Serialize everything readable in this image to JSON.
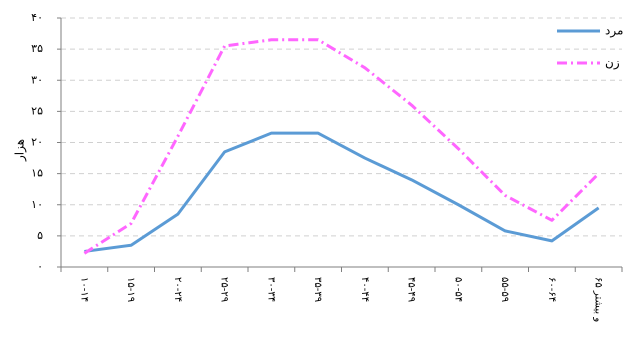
{
  "chart_data": {
    "type": "line",
    "title": "",
    "xlabel": "",
    "ylabel": "هزار",
    "ylim": [
      0,
      40
    ],
    "yticks": [
      0,
      5,
      10,
      15,
      20,
      25,
      30,
      35,
      40
    ],
    "ytick_labels": [
      "۰",
      "۵",
      "۱۰",
      "۱۵",
      "۲۰",
      "۲۵",
      "۳۰",
      "۳۵",
      "۴۰"
    ],
    "grid": "horizontal dashed",
    "legend_position": "top-right",
    "categories": [
      "۱۰-۱۴",
      "۱۵-۱۹",
      "۲۰-۲۴",
      "۲۵-۲۹",
      "۳۰-۳۴",
      "۳۵-۳۹",
      "۴۰-۴۴",
      "۴۵-۴۹",
      "۵۰-۵۴",
      "۵۵-۵۹",
      "۶۰-۶۴",
      "۶۵ و بیشتر"
    ],
    "series": [
      {
        "name": "مرد",
        "color": "#5b9bd5",
        "style": "solid",
        "values": [
          2.5,
          3.5,
          8.5,
          18.5,
          21.5,
          21.5,
          17.5,
          14,
          10,
          5.8,
          4.2,
          9.5
        ]
      },
      {
        "name": "زن",
        "color": "#ff66ff",
        "style": "dash-dot",
        "values": [
          2.2,
          7,
          21,
          35.5,
          36.5,
          36.5,
          32,
          26,
          19,
          11.5,
          7.5,
          15
        ]
      }
    ]
  }
}
